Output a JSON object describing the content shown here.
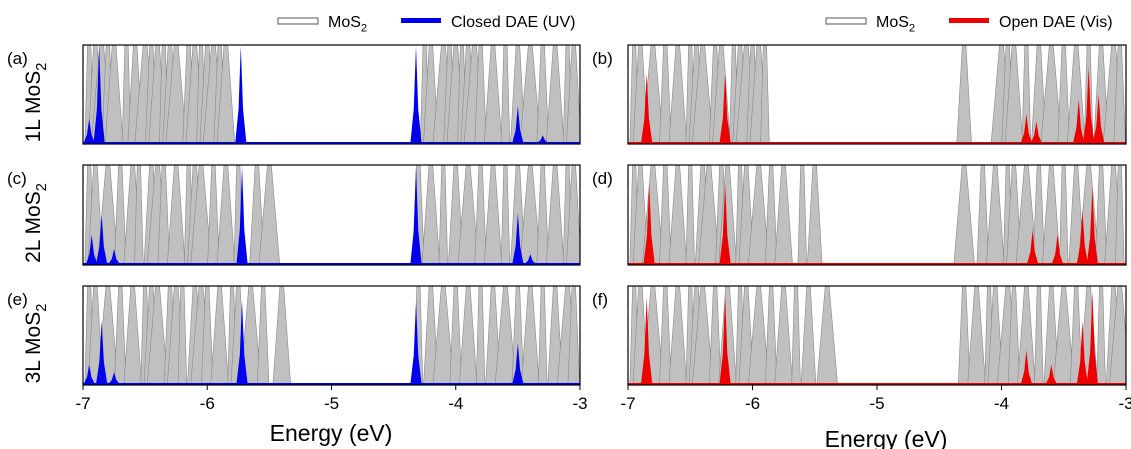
{
  "colors": {
    "mos2_fill": "#c0c0c0",
    "mos2_edge": "#8a8a8a",
    "closed": "#0000ee",
    "open": "#ee0000",
    "frame": "#000000"
  },
  "legends": {
    "left": [
      {
        "label": "MoS",
        "sub": "2",
        "swatch": "mos2"
      },
      {
        "label": "Closed DAE (UV)",
        "sub": "",
        "swatch": "closed"
      }
    ],
    "right": [
      {
        "label": "MoS",
        "sub": "2",
        "swatch": "mos2"
      },
      {
        "label": "Open DAE (Vis)",
        "sub": "",
        "swatch": "open"
      }
    ]
  },
  "row_labels": [
    {
      "text": "1L MoS",
      "sub": "2"
    },
    {
      "text": "2L MoS",
      "sub": "2"
    },
    {
      "text": "3L MoS",
      "sub": "2"
    }
  ],
  "xaxis": {
    "label": "Energy (eV)",
    "ticks": [
      -7,
      -6,
      -5,
      -4,
      -3
    ],
    "tick_labels": [
      "-7",
      "-6",
      "-5",
      "-4",
      "-3"
    ],
    "range": [
      -7,
      -3
    ]
  },
  "chart_data": [
    {
      "panel": "(a)",
      "type": "area",
      "layer": "1L",
      "series": [
        {
          "name": "MoS2",
          "color": "mos2",
          "peaks_ev": [
            -6.95,
            -6.9,
            -6.85,
            -6.8,
            -6.75,
            -6.65,
            -6.58,
            -6.5,
            -6.45,
            -6.4,
            -6.35,
            -6.3,
            -6.25,
            -6.15,
            -6.1,
            -6.05,
            -6.0,
            -5.95,
            -5.9,
            -5.85,
            -4.25,
            -4.2,
            -4.1,
            -4.05,
            -4.0,
            -3.95,
            -3.9,
            -3.85,
            -3.8,
            -3.7,
            -3.6,
            -3.5,
            -3.4,
            -3.3,
            -3.2,
            -3.1,
            -3.05
          ]
        },
        {
          "name": "Closed DAE (UV)",
          "color": "closed",
          "peaks": [
            {
              "e": -6.87,
              "h": 1.0
            },
            {
              "e": -6.95,
              "h": 0.25
            },
            {
              "e": -5.73,
              "h": 1.0
            },
            {
              "e": -4.32,
              "h": 1.0
            },
            {
              "e": -3.5,
              "h": 0.38
            },
            {
              "e": -3.3,
              "h": 0.08
            }
          ]
        }
      ]
    },
    {
      "panel": "(b)",
      "type": "area",
      "layer": "1L",
      "series": [
        {
          "name": "MoS2",
          "color": "mos2",
          "peaks_ev": [
            -6.95,
            -6.9,
            -6.8,
            -6.7,
            -6.6,
            -6.5,
            -6.45,
            -6.4,
            -6.3,
            -6.25,
            -6.15,
            -6.1,
            -6.05,
            -6.0,
            -5.95,
            -5.9,
            -4.3,
            -4.0,
            -3.95,
            -3.9,
            -3.8,
            -3.7,
            -3.6,
            -3.5,
            -3.4,
            -3.3,
            -3.2,
            -3.1,
            -3.05
          ]
        },
        {
          "name": "Open DAE (Vis)",
          "color": "open",
          "peaks": [
            {
              "e": -6.85,
              "h": 0.72
            },
            {
              "e": -6.22,
              "h": 0.72
            },
            {
              "e": -3.8,
              "h": 0.3
            },
            {
              "e": -3.72,
              "h": 0.22
            },
            {
              "e": -3.3,
              "h": 0.78
            },
            {
              "e": -3.38,
              "h": 0.45
            },
            {
              "e": -3.22,
              "h": 0.5
            }
          ]
        }
      ]
    },
    {
      "panel": "(c)",
      "type": "area",
      "layer": "2L",
      "series": [
        {
          "name": "MoS2",
          "color": "mos2",
          "peaks_ev": [
            -6.95,
            -6.9,
            -6.8,
            -6.7,
            -6.6,
            -6.55,
            -6.45,
            -6.4,
            -6.35,
            -6.25,
            -6.15,
            -6.1,
            -6.05,
            -5.95,
            -5.85,
            -5.75,
            -5.6,
            -5.5,
            -4.3,
            -4.2,
            -4.1,
            -4.0,
            -3.9,
            -3.8,
            -3.7,
            -3.6,
            -3.5,
            -3.4,
            -3.3,
            -3.2,
            -3.1,
            -3.05
          ]
        },
        {
          "name": "Closed DAE (UV)",
          "color": "closed",
          "peaks": [
            {
              "e": -6.85,
              "h": 0.5
            },
            {
              "e": -6.93,
              "h": 0.3
            },
            {
              "e": -6.75,
              "h": 0.15
            },
            {
              "e": -5.72,
              "h": 1.0
            },
            {
              "e": -4.32,
              "h": 1.0
            },
            {
              "e": -3.5,
              "h": 0.52
            },
            {
              "e": -3.4,
              "h": 0.1
            }
          ]
        }
      ]
    },
    {
      "panel": "(d)",
      "type": "area",
      "layer": "2L",
      "series": [
        {
          "name": "MoS2",
          "color": "mos2",
          "peaks_ev": [
            -6.95,
            -6.9,
            -6.8,
            -6.7,
            -6.6,
            -6.5,
            -6.4,
            -6.35,
            -6.25,
            -6.2,
            -6.1,
            -6.05,
            -5.95,
            -5.85,
            -5.75,
            -5.6,
            -5.5,
            -4.3,
            -4.15,
            -4.05,
            -3.95,
            -3.9,
            -3.8,
            -3.7,
            -3.6,
            -3.5,
            -3.4,
            -3.3,
            -3.2,
            -3.1,
            -3.05
          ]
        },
        {
          "name": "Open DAE (Vis)",
          "color": "open",
          "peaks": [
            {
              "e": -6.83,
              "h": 0.82
            },
            {
              "e": -6.22,
              "h": 0.82
            },
            {
              "e": -3.75,
              "h": 0.35
            },
            {
              "e": -3.55,
              "h": 0.3
            },
            {
              "e": -3.35,
              "h": 0.55
            },
            {
              "e": -3.27,
              "h": 0.78
            }
          ]
        }
      ]
    },
    {
      "panel": "(e)",
      "type": "area",
      "layer": "3L",
      "series": [
        {
          "name": "MoS2",
          "color": "mos2",
          "peaks_ev": [
            -6.95,
            -6.9,
            -6.8,
            -6.7,
            -6.6,
            -6.5,
            -6.45,
            -6.4,
            -6.3,
            -6.25,
            -6.2,
            -6.1,
            -6.05,
            -6.0,
            -5.9,
            -5.8,
            -5.75,
            -5.65,
            -5.55,
            -5.4,
            -4.3,
            -4.2,
            -4.1,
            -4.0,
            -3.9,
            -3.8,
            -3.7,
            -3.6,
            -3.5,
            -3.4,
            -3.3,
            -3.2,
            -3.1,
            -3.05
          ]
        },
        {
          "name": "Closed DAE (UV)",
          "color": "closed",
          "peaks": [
            {
              "e": -6.85,
              "h": 0.65
            },
            {
              "e": -6.95,
              "h": 0.2
            },
            {
              "e": -6.75,
              "h": 0.12
            },
            {
              "e": -5.72,
              "h": 0.85
            },
            {
              "e": -4.32,
              "h": 0.85
            },
            {
              "e": -3.5,
              "h": 0.42
            }
          ]
        }
      ]
    },
    {
      "panel": "(f)",
      "type": "area",
      "layer": "3L",
      "series": [
        {
          "name": "MoS2",
          "color": "mos2",
          "peaks_ev": [
            -6.95,
            -6.9,
            -6.8,
            -6.7,
            -6.6,
            -6.5,
            -6.45,
            -6.4,
            -6.3,
            -6.2,
            -6.1,
            -6.05,
            -5.95,
            -5.85,
            -5.75,
            -5.65,
            -5.55,
            -5.4,
            -4.3,
            -4.2,
            -4.1,
            -4.05,
            -3.95,
            -3.9,
            -3.8,
            -3.7,
            -3.6,
            -3.5,
            -3.4,
            -3.3,
            -3.2,
            -3.1,
            -3.05
          ]
        },
        {
          "name": "Open DAE (Vis)",
          "color": "open",
          "peaks": [
            {
              "e": -6.85,
              "h": 0.9
            },
            {
              "e": -6.22,
              "h": 0.9
            },
            {
              "e": -3.8,
              "h": 0.35
            },
            {
              "e": -3.6,
              "h": 0.2
            },
            {
              "e": -3.35,
              "h": 0.65
            },
            {
              "e": -3.27,
              "h": 0.95
            }
          ]
        }
      ]
    }
  ]
}
